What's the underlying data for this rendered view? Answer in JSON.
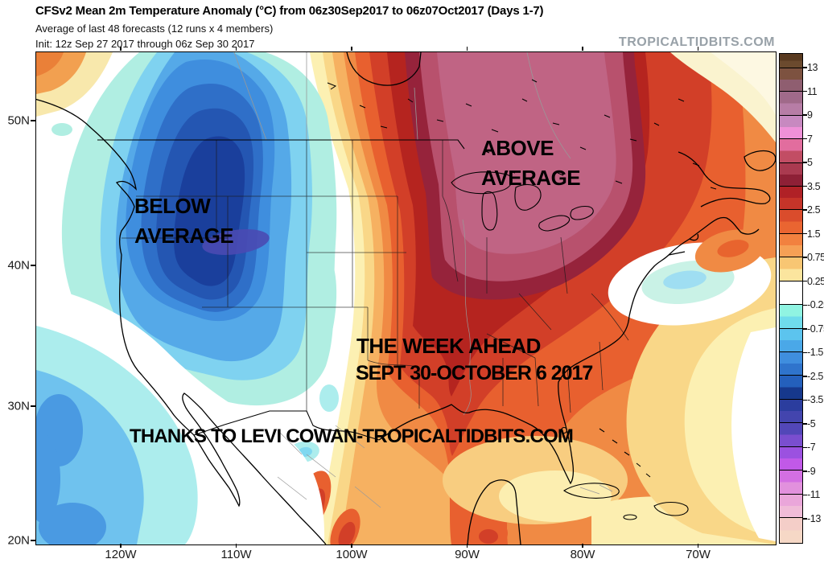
{
  "header": {
    "title": "CFSv2 Mean 2m Temperature Anomaly (°C) from 06z30Sep2017 to 06z07Oct2017 (Days 1-7)",
    "subtitle": "Average of last 48 forecasts (12 runs x 4 members)",
    "init_line": "Init: 12z Sep 27 2017 through 06z Sep 30 2017",
    "watermark": "TROPICALTIDBITS.COM"
  },
  "map": {
    "annotations": {
      "above_line1": "ABOVE",
      "above_line2": "AVERAGE",
      "below_line1": "BELOW",
      "below_line2": "AVERAGE",
      "week_line1": "THE WEEK AHEAD",
      "week_line2": "SEPT 30-OCTOBER 6 2017",
      "credit": "THANKS TO LEVI COWAN-TROPICALTIDBITS.COM"
    },
    "y_axis_labels": [
      "50N",
      "40N",
      "30N",
      "20N"
    ],
    "x_axis_labels": [
      "120W",
      "110W",
      "100W",
      "90W",
      "80W",
      "70W"
    ],
    "region_colors": {
      "below_average_core": "#1a3f9c",
      "above_average_core": "#c06484",
      "neutral": "#ffffff"
    }
  },
  "colorbar": {
    "units": "°C anomaly",
    "segments": [
      {
        "top_label": null,
        "colors": [
          "#593a20",
          "#6b4a2e"
        ]
      },
      {
        "top_label": "13",
        "colors": [
          "#7d5240",
          "#8f5e70"
        ]
      },
      {
        "top_label": "11",
        "colors": [
          "#a06a8a",
          "#b77da6"
        ]
      },
      {
        "top_label": "9",
        "colors": [
          "#c789c0",
          "#ef91d8"
        ]
      },
      {
        "top_label": "7",
        "colors": [
          "#e26d9e",
          "#c24d64"
        ]
      },
      {
        "top_label": "5",
        "colors": [
          "#aa3a50",
          "#8e2036"
        ]
      },
      {
        "top_label": "3.5",
        "colors": [
          "#b02126",
          "#c63429"
        ]
      },
      {
        "top_label": "2.5",
        "colors": [
          "#da4c2c",
          "#ea6531"
        ]
      },
      {
        "top_label": "1.5",
        "colors": [
          "#f2813f",
          "#f6a055"
        ]
      },
      {
        "top_label": "0.75",
        "colors": [
          "#f8c673",
          "#fbe59e"
        ]
      },
      {
        "top_label": "0.25",
        "colors": [
          "#ffffff",
          "#ffffff"
        ]
      },
      {
        "top_label": "-0.25",
        "colors": [
          "#90f4e2",
          "#6fdcec"
        ]
      },
      {
        "top_label": "-0.75",
        "colors": [
          "#5cc4ee",
          "#4aa8e8"
        ]
      },
      {
        "top_label": "-1.5",
        "colors": [
          "#3f8ede",
          "#2f74cc"
        ]
      },
      {
        "top_label": "-2.5",
        "colors": [
          "#2460bc",
          "#16388c"
        ]
      },
      {
        "top_label": "-3.5",
        "colors": [
          "#2b3d9e",
          "#4345ae"
        ]
      },
      {
        "top_label": "-5",
        "colors": [
          "#5247b8",
          "#7a4ecf"
        ]
      },
      {
        "top_label": "-7",
        "colors": [
          "#9b51e0",
          "#c159e8"
        ]
      },
      {
        "top_label": "-9",
        "colors": [
          "#d36fe2",
          "#e291dd"
        ]
      },
      {
        "top_label": "-11",
        "colors": [
          "#eaa6da",
          "#f0bcd8"
        ]
      },
      {
        "top_label": "-13",
        "colors": [
          "#f4cec8",
          "#f6d8c6"
        ]
      }
    ]
  }
}
